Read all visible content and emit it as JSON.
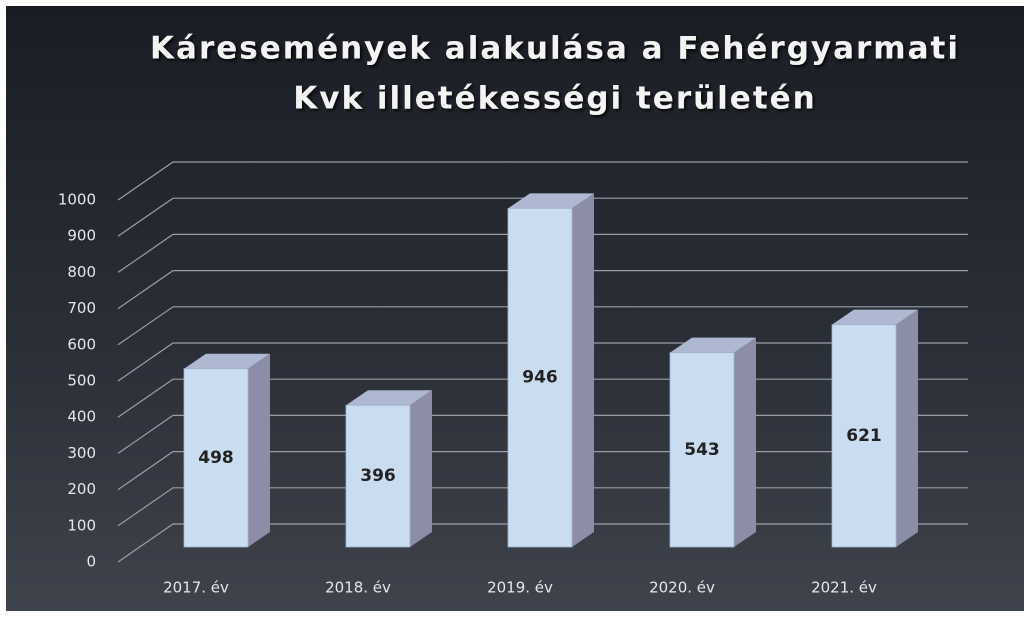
{
  "chart_data": {
    "type": "bar3d",
    "title": [
      "Káresemények alakulása a Fehérgyarmati",
      "Kvk illetékességi területén"
    ],
    "categories": [
      "2017. év",
      "2018. év",
      "2019. év",
      "2020. év",
      "2021. év"
    ],
    "values": [
      498,
      396,
      946,
      543,
      621
    ],
    "color": "#cadcf0",
    "ylim": [
      0,
      1000
    ],
    "yticks": [
      0,
      100,
      200,
      300,
      400,
      500,
      600,
      700,
      800,
      900,
      1000
    ],
    "grid": true
  }
}
